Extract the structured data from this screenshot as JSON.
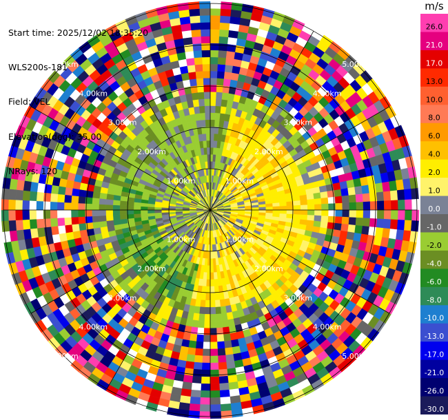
{
  "header": {
    "start_time": "Start time: 2025/12/02 18:35:20",
    "instrument": "WLS200s-181",
    "field": "Field: VEL",
    "elevation": "Elevation(deg): 35.00",
    "nrays": "NRays: 120"
  },
  "colorbar": {
    "unit": "m/s",
    "bins": [
      {
        "label": "26.0",
        "color": "#ff3eb0"
      },
      {
        "label": "21.0",
        "color": "#e5007f"
      },
      {
        "label": "17.0",
        "color": "#e40000"
      },
      {
        "label": "13.0",
        "color": "#ff2a00"
      },
      {
        "label": "10.0",
        "color": "#ff6030"
      },
      {
        "label": "8.0",
        "color": "#ff7a55"
      },
      {
        "label": "6.0",
        "color": "#ff9a00"
      },
      {
        "label": "4.0",
        "color": "#ffc000"
      },
      {
        "label": "2.0",
        "color": "#ffee00"
      },
      {
        "label": "1.0",
        "color": "#fff36a"
      },
      {
        "label": "0.0",
        "color": "#7a8296"
      },
      {
        "label": "-1.0",
        "color": "#666666"
      },
      {
        "label": "-2.0",
        "color": "#9acd32"
      },
      {
        "label": "-4.0",
        "color": "#6b8e23"
      },
      {
        "label": "-6.0",
        "color": "#228b22"
      },
      {
        "label": "-8.0",
        "color": "#2e8b57"
      },
      {
        "label": "-10.0",
        "color": "#1e7fd0"
      },
      {
        "label": "-13.0",
        "color": "#3b4fd0"
      },
      {
        "label": "-17.0",
        "color": "#0000ee"
      },
      {
        "label": "-21.0",
        "color": "#0000a0"
      },
      {
        "label": "-26.0",
        "color": "#000070"
      },
      {
        "label": "-30.0",
        "color": "#1a1a5a"
      }
    ]
  },
  "rings": {
    "labels": [
      "1.00km",
      "2.00km",
      "3.00km",
      "4.00km",
      "5.00km"
    ]
  }
}
